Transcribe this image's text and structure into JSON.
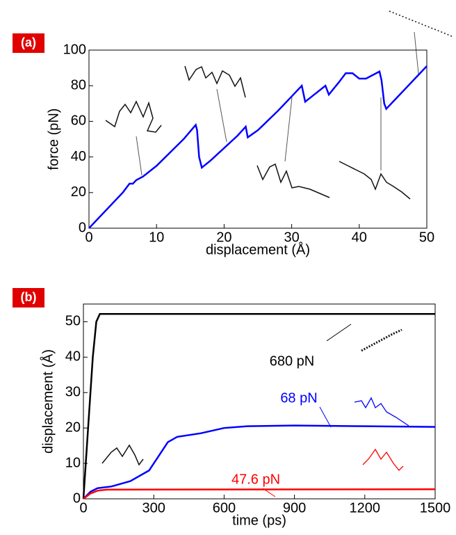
{
  "chart_data": [
    {
      "type": "line",
      "label": "(a)",
      "xlabel": "displacement (Å)",
      "ylabel": "force (pN)",
      "xlim": [
        0,
        50
      ],
      "ylim": [
        0,
        100
      ],
      "xticks": [
        0,
        10,
        20,
        30,
        40,
        50
      ],
      "yticks": [
        0,
        20,
        40,
        60,
        80,
        100
      ],
      "series": [
        {
          "color": "#0000ff",
          "x": [
            0,
            5,
            6,
            6.5,
            7,
            8,
            10,
            14,
            15.8,
            16,
            16.3,
            16.7,
            18,
            20,
            22,
            23.2,
            23.5,
            25,
            28,
            30,
            31.5,
            32,
            33,
            35,
            35.5,
            37,
            38,
            39,
            40,
            41,
            42,
            43,
            43.3,
            43.7,
            44,
            46,
            48,
            50
          ],
          "values": [
            0,
            20,
            25,
            25,
            27,
            29,
            35,
            50,
            58,
            55,
            40,
            34,
            38,
            45,
            52,
            57,
            51,
            55,
            66,
            74,
            80,
            71,
            74,
            80,
            75,
            82,
            87,
            87,
            84,
            84,
            86,
            88,
            83,
            70,
            67,
            75,
            83,
            91
          ]
        }
      ]
    },
    {
      "type": "line",
      "label": "(b)",
      "xlabel": "time (ps)",
      "ylabel": "displacement (Å)",
      "xlim": [
        0,
        1500
      ],
      "ylim": [
        0,
        55
      ],
      "xticks": [
        0,
        300,
        600,
        900,
        1200,
        1500
      ],
      "yticks": [
        0,
        10,
        20,
        30,
        40,
        50
      ],
      "series": [
        {
          "name": "680 pN",
          "color": "#000000",
          "x": [
            0,
            20,
            40,
            55,
            70,
            1500
          ],
          "values": [
            0,
            20,
            40,
            50,
            52.2,
            52.2
          ]
        },
        {
          "name": "68 pN",
          "color": "#0000ff",
          "x": [
            0,
            30,
            60,
            120,
            200,
            280,
            320,
            360,
            400,
            500,
            600,
            700,
            900,
            1200,
            1500
          ],
          "values": [
            0,
            2,
            3,
            3.5,
            5,
            8,
            12,
            16,
            17.5,
            18.5,
            20,
            20.5,
            20.7,
            20.5,
            20.3
          ]
        },
        {
          "name": "47.6 pN",
          "color": "#ff0000",
          "x": [
            0,
            30,
            60,
            100,
            1500
          ],
          "values": [
            0,
            1.5,
            2.3,
            2.6,
            2.7
          ]
        }
      ]
    }
  ]
}
